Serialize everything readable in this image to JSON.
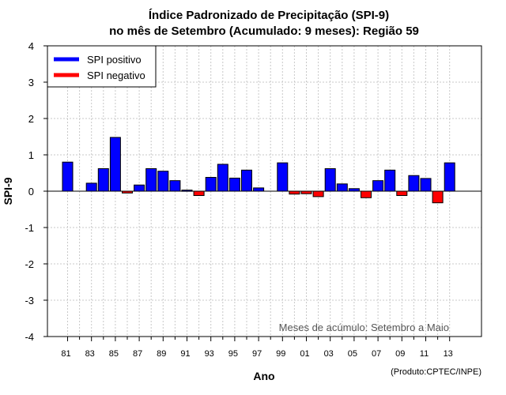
{
  "chart_data": {
    "type": "bar",
    "title_line1": "Índice Padronizado de Precipitação (SPI-9)",
    "title_line2": "no mês de Setembro (Acumulado: 9 meses): Região 59",
    "xlabel": "Ano",
    "ylabel": "SPI-9",
    "ylim": [
      -4,
      4
    ],
    "yticks": [
      -4,
      -3,
      -2,
      -1,
      0,
      1,
      2,
      3,
      4
    ],
    "xtick_labels": [
      "81",
      "83",
      "85",
      "87",
      "89",
      "91",
      "93",
      "95",
      "97",
      "99",
      "01",
      "03",
      "05",
      "07",
      "09",
      "11",
      "13"
    ],
    "years": [
      "1981",
      "1982",
      "1983",
      "1984",
      "1985",
      "1986",
      "1987",
      "1988",
      "1989",
      "1990",
      "1991",
      "1992",
      "1993",
      "1994",
      "1995",
      "1996",
      "1997",
      "1998",
      "1999",
      "2000",
      "2001",
      "2002",
      "2003",
      "2004",
      "2005",
      "2006",
      "2007",
      "2008",
      "2009",
      "2010",
      "2011",
      "2012",
      "2013"
    ],
    "values": [
      0.8,
      0.0,
      0.22,
      0.62,
      1.48,
      -0.05,
      0.17,
      0.62,
      0.55,
      0.29,
      0.03,
      -0.12,
      0.38,
      0.74,
      0.36,
      0.58,
      0.09,
      0.0,
      0.78,
      -0.08,
      -0.07,
      -0.15,
      0.62,
      0.2,
      0.07,
      -0.18,
      0.29,
      0.58,
      -0.12,
      0.43,
      0.35,
      -0.32,
      0.78
    ],
    "grid": true,
    "legend": [
      {
        "label": "SPI positivo",
        "color": "#0000ff"
      },
      {
        "label": "SPI negativo",
        "color": "#ff0000"
      }
    ],
    "legend_position": "top-left",
    "annotation": "Meses de acúmulo: Setembro a Maio",
    "source": "(Produto:CPTEC/INPE)",
    "colors": {
      "positive": "#0000ff",
      "negative": "#ff0000"
    }
  }
}
